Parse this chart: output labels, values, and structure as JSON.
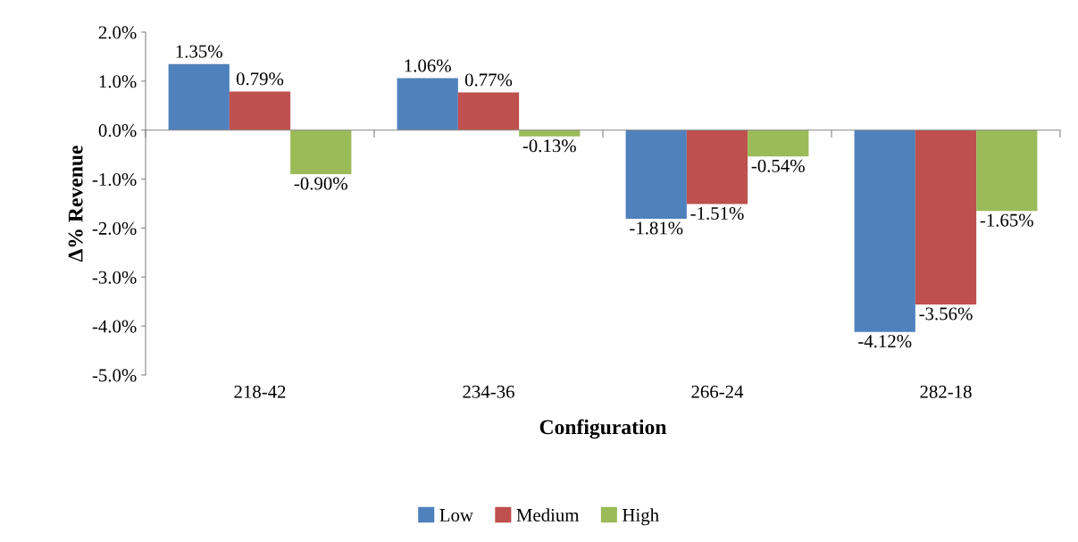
{
  "chart_data": {
    "type": "bar",
    "xlabel": "Configuration",
    "ylabel": "Δ% Revenue",
    "categories": [
      "218-42",
      "234-36",
      "266-24",
      "282-18"
    ],
    "series": [
      {
        "name": "Low",
        "color": "#4f81bd",
        "values": [
          1.35,
          1.06,
          -1.81,
          -4.12
        ],
        "value_labels": [
          "1.35%",
          "1.06%",
          "-1.81%",
          "-4.12%"
        ]
      },
      {
        "name": "Medium",
        "color": "#c0504d",
        "values": [
          0.79,
          0.77,
          -1.51,
          -3.56
        ],
        "value_labels": [
          "0.79%",
          "0.77%",
          "-1.51%",
          "-3.56%"
        ]
      },
      {
        "name": "High",
        "color": "#9bbb59",
        "values": [
          -0.9,
          -0.13,
          -0.54,
          -1.65
        ],
        "value_labels": [
          "-0.90%",
          "-0.13%",
          "-0.54%",
          "-1.65%"
        ]
      }
    ],
    "ylim": [
      -5,
      2
    ],
    "yticks": [
      {
        "value": -5,
        "label": "-5.0%"
      },
      {
        "value": -4,
        "label": "-4.0%"
      },
      {
        "value": -3,
        "label": "-3.0%"
      },
      {
        "value": -2,
        "label": "-2.0%"
      },
      {
        "value": -1,
        "label": "-1.0%"
      },
      {
        "value": 0,
        "label": "0.0%"
      },
      {
        "value": 1,
        "label": "1.0%"
      },
      {
        "value": 2,
        "label": "2.0%"
      }
    ],
    "legend": "bottom"
  }
}
